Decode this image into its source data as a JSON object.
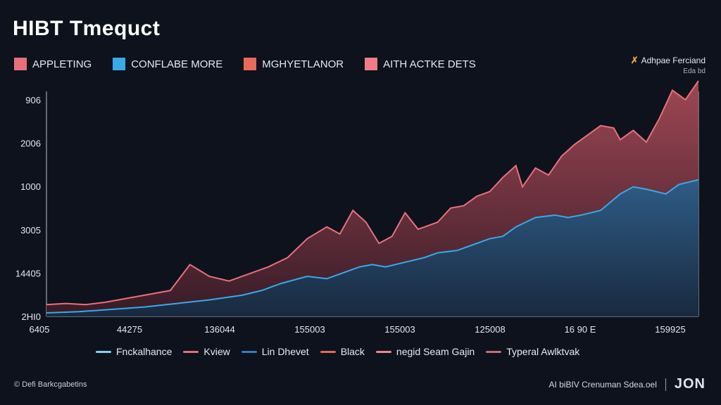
{
  "title": "HIBT Tmequct",
  "top_legend": [
    {
      "label": "APPLETING",
      "color": "#e8707a"
    },
    {
      "label": "CONFLABE MORE",
      "color": "#3ba8e8"
    },
    {
      "label": "MGHYETLANOR",
      "color": "#e86a5a"
    },
    {
      "label": "AITH ACTKE DETS",
      "color": "#ee7d86"
    }
  ],
  "brand": {
    "name": "Adhpae Ferciand",
    "sub": "Eda bd"
  },
  "bottom_legend": [
    {
      "label": "Fnckalhance",
      "color": "#7fd4f2"
    },
    {
      "label": "Kview",
      "color": "#e56d78"
    },
    {
      "label": "Lin Dhevet",
      "color": "#2e7fc7"
    },
    {
      "label": "Black",
      "color": "#e06b55"
    },
    {
      "label": "negid Seam Gajin",
      "color": "#ef8590"
    },
    {
      "label": "Typeral Awlktvak",
      "color": "#c96a72"
    }
  ],
  "footer": {
    "left": "© Defi Barkcgabetins",
    "right": "AI biBIV Crenuman Sdea.oel",
    "logo": "JON"
  },
  "chart_data": {
    "type": "area",
    "y_tick_labels": [
      "906",
      "2006",
      "1000",
      "3005",
      "14405",
      "2HI0"
    ],
    "x_tick_labels": [
      "6405",
      "44275",
      "136044",
      "155003",
      "155003",
      "125008",
      "16 90 E",
      "159925"
    ],
    "ylim": [
      0,
      100
    ],
    "grid": false,
    "series": [
      {
        "role": "upper",
        "color": "#e8707a",
        "x": [
          0,
          3,
          6,
          9,
          12,
          15,
          19,
          22,
          25,
          28,
          31,
          34,
          37,
          40,
          43,
          45,
          47,
          49,
          51,
          53,
          55,
          57,
          60,
          62,
          64,
          66,
          68,
          70,
          72,
          73,
          75,
          77,
          79,
          81,
          83,
          85,
          87,
          88,
          90,
          92,
          94,
          96,
          98,
          100
        ],
        "y": [
          5,
          5.5,
          5,
          6,
          7.5,
          9,
          11,
          22,
          17,
          15,
          18,
          21,
          25,
          33,
          38,
          35,
          45,
          40,
          31,
          34,
          44,
          37,
          40,
          46,
          47,
          51,
          53,
          59,
          64,
          55,
          63,
          60,
          68,
          73,
          77,
          81,
          80,
          75,
          79,
          74,
          84,
          96,
          92,
          100
        ]
      },
      {
        "role": "lower",
        "color": "#3ba8e8",
        "x": [
          0,
          5,
          10,
          15,
          20,
          25,
          30,
          33,
          36,
          40,
          43,
          45,
          48,
          50,
          52,
          55,
          58,
          60,
          63,
          65,
          68,
          70,
          72,
          75,
          78,
          80,
          82,
          85,
          88,
          90,
          92,
          95,
          97,
          100
        ],
        "y": [
          1.5,
          2,
          3,
          4,
          5.5,
          7,
          9,
          11,
          14,
          17,
          16,
          18,
          21,
          22,
          21,
          23,
          25,
          27,
          28,
          30,
          33,
          34,
          38,
          42,
          43,
          42,
          43,
          45,
          52,
          55,
          54,
          52,
          56,
          58
        ]
      }
    ]
  }
}
